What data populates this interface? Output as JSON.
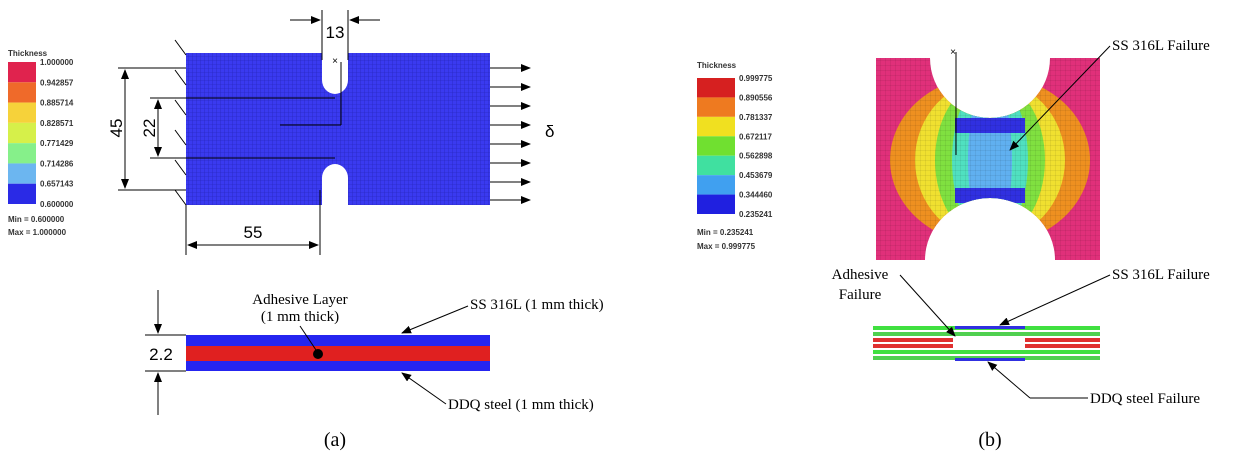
{
  "panel_a": {
    "legend": {
      "title": "Thickness",
      "labels": [
        "1.000000",
        "0.942857",
        "0.885714",
        "0.828571",
        "0.771429",
        "0.714286",
        "0.657143",
        "0.600000"
      ],
      "min": "Min = 0.600000",
      "max": "Max = 1.000000"
    },
    "dimensions": {
      "notch_width": "13",
      "height": "45",
      "gauge": "22",
      "length": "55",
      "thickness": "2.2"
    },
    "load": "δ",
    "annotations": {
      "adhesive_line1": "Adhesive Layer",
      "adhesive_line2": "(1 mm thick)",
      "ss316l": "SS 316L (1 mm thick)",
      "ddq": "DDQ steel (1 mm thick)"
    },
    "caption": "(a)"
  },
  "panel_b": {
    "legend": {
      "title": "Thickness",
      "labels": [
        "0.999775",
        "0.890556",
        "0.781337",
        "0.672117",
        "0.562898",
        "0.453679",
        "0.344460",
        "0.235241"
      ],
      "min": "Min = 0.235241",
      "max": "Max = 0.999775"
    },
    "annotations": {
      "ss316l_top": "SS 316L Failure",
      "adhesive_line1": "Adhesive",
      "adhesive_line2": "Failure",
      "ss316l_bottom": "SS 316L Failure",
      "ddq": "DDQ steel Failure"
    },
    "caption": "(b)"
  }
}
